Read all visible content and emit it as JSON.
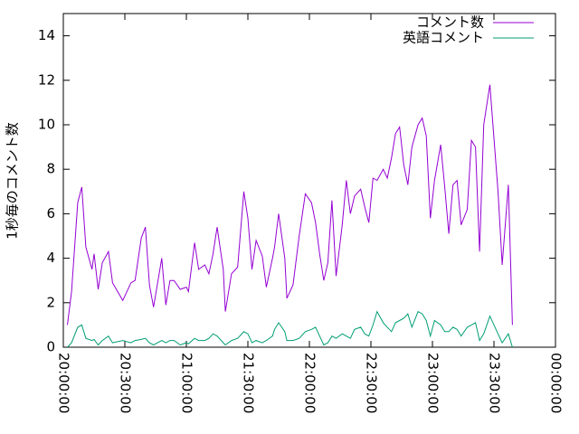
{
  "chart_data": {
    "type": "line",
    "ylabel": "1秒毎のコメント数",
    "x": [
      "20:02:00",
      "20:04:00",
      "20:07:00",
      "20:09:00",
      "20:11:00",
      "20:14:00",
      "20:15:00",
      "20:17:00",
      "20:19:00",
      "20:22:00",
      "20:24:00",
      "20:29:00",
      "20:33:00",
      "20:35:00",
      "20:38:00",
      "20:40:00",
      "20:42:00",
      "20:44:00",
      "20:48:00",
      "20:50:00",
      "20:52:00",
      "20:54:00",
      "20:57:00",
      "21:00:00",
      "21:01:00",
      "21:04:00",
      "21:06:00",
      "21:09:00",
      "21:11:00",
      "21:13:00",
      "21:15:00",
      "21:18:00",
      "21:19:00",
      "21:22:00",
      "21:25:00",
      "21:28:00",
      "21:30:00",
      "21:32:00",
      "21:34:00",
      "21:37:00",
      "21:39:00",
      "21:42:00",
      "21:43:00",
      "21:45:00",
      "21:48:00",
      "21:49:00",
      "21:52:00",
      "21:55:00",
      "21:58:00",
      "22:01:00",
      "22:03:00",
      "22:05:00",
      "22:07:00",
      "22:09:00",
      "22:11:00",
      "22:13:00",
      "22:16:00",
      "22:18:00",
      "22:20:00",
      "22:22:00",
      "22:25:00",
      "22:27:00",
      "22:29:00",
      "22:31:00",
      "22:33:00",
      "22:36:00",
      "22:38:00",
      "22:40:00",
      "22:42:00",
      "22:44:00",
      "22:46:00",
      "22:48:00",
      "22:50:00",
      "22:53:00",
      "22:55:00",
      "22:57:00",
      "22:59:00",
      "23:01:00",
      "23:04:00",
      "23:06:00",
      "23:08:00",
      "23:10:00",
      "23:12:00",
      "23:14:00",
      "23:17:00",
      "23:19:00",
      "23:21:00",
      "23:23:00",
      "23:25:00",
      "23:28:00",
      "23:30:00",
      "23:32:00",
      "23:34:00",
      "23:37:00",
      "23:39:00"
    ],
    "series": [
      {
        "name": "コメント数",
        "color": "#9400d3",
        "values": [
          1.0,
          2.5,
          6.5,
          7.2,
          4.5,
          3.5,
          4.2,
          2.6,
          3.8,
          4.3,
          2.9,
          2.1,
          2.9,
          3.0,
          4.9,
          5.4,
          2.8,
          1.8,
          4.0,
          1.9,
          3.0,
          3.0,
          2.6,
          2.7,
          2.5,
          4.7,
          3.5,
          3.7,
          3.3,
          4.2,
          5.4,
          3.5,
          1.6,
          3.3,
          3.6,
          7.0,
          5.8,
          3.5,
          4.8,
          4.1,
          2.7,
          4.0,
          4.5,
          6.0,
          4.0,
          2.2,
          2.8,
          5.0,
          6.9,
          6.5,
          5.6,
          4.2,
          3.0,
          3.8,
          6.6,
          3.2,
          5.5,
          7.5,
          6.0,
          6.8,
          7.1,
          6.3,
          5.6,
          7.6,
          7.5,
          8.0,
          7.6,
          8.5,
          9.6,
          9.9,
          8.2,
          7.3,
          9.0,
          10.0,
          10.3,
          9.5,
          5.8,
          7.5,
          9.1,
          7.2,
          5.1,
          7.3,
          7.5,
          5.5,
          6.2,
          9.3,
          9.0,
          4.3,
          10.0,
          11.8,
          9.4,
          7.0,
          3.7,
          7.3,
          1.0
        ]
      },
      {
        "name": "英語コメント",
        "color": "#009e73",
        "values": [
          0.0,
          0.2,
          0.9,
          1.0,
          0.4,
          0.3,
          0.35,
          0.1,
          0.3,
          0.5,
          0.2,
          0.3,
          0.2,
          0.3,
          0.35,
          0.4,
          0.2,
          0.1,
          0.3,
          0.2,
          0.3,
          0.3,
          0.1,
          0.2,
          0.15,
          0.4,
          0.3,
          0.3,
          0.4,
          0.6,
          0.5,
          0.2,
          0.1,
          0.3,
          0.4,
          0.7,
          0.6,
          0.2,
          0.3,
          0.2,
          0.3,
          0.5,
          0.8,
          1.1,
          0.7,
          0.3,
          0.3,
          0.4,
          0.7,
          0.8,
          0.9,
          0.5,
          0.1,
          0.2,
          0.5,
          0.4,
          0.6,
          0.5,
          0.4,
          0.8,
          0.9,
          0.6,
          0.5,
          1.0,
          1.6,
          1.1,
          0.9,
          0.7,
          1.1,
          1.2,
          1.3,
          1.5,
          0.9,
          1.6,
          1.5,
          1.2,
          0.5,
          1.2,
          1.0,
          0.7,
          0.7,
          0.9,
          0.8,
          0.5,
          0.9,
          1.0,
          1.1,
          0.3,
          0.6,
          1.4,
          1.0,
          0.6,
          0.2,
          0.6,
          0.0
        ]
      }
    ],
    "xlim": [
      "20:00:00",
      "00:00:00"
    ],
    "xticks": [
      "20:00:00",
      "20:30:00",
      "21:00:00",
      "21:30:00",
      "22:00:00",
      "22:30:00",
      "23:00:00",
      "23:30:00",
      "00:00:00"
    ],
    "ylim": [
      0,
      15
    ],
    "yticks": [
      0,
      2,
      4,
      6,
      8,
      10,
      12,
      14
    ],
    "legend": "top-right"
  }
}
